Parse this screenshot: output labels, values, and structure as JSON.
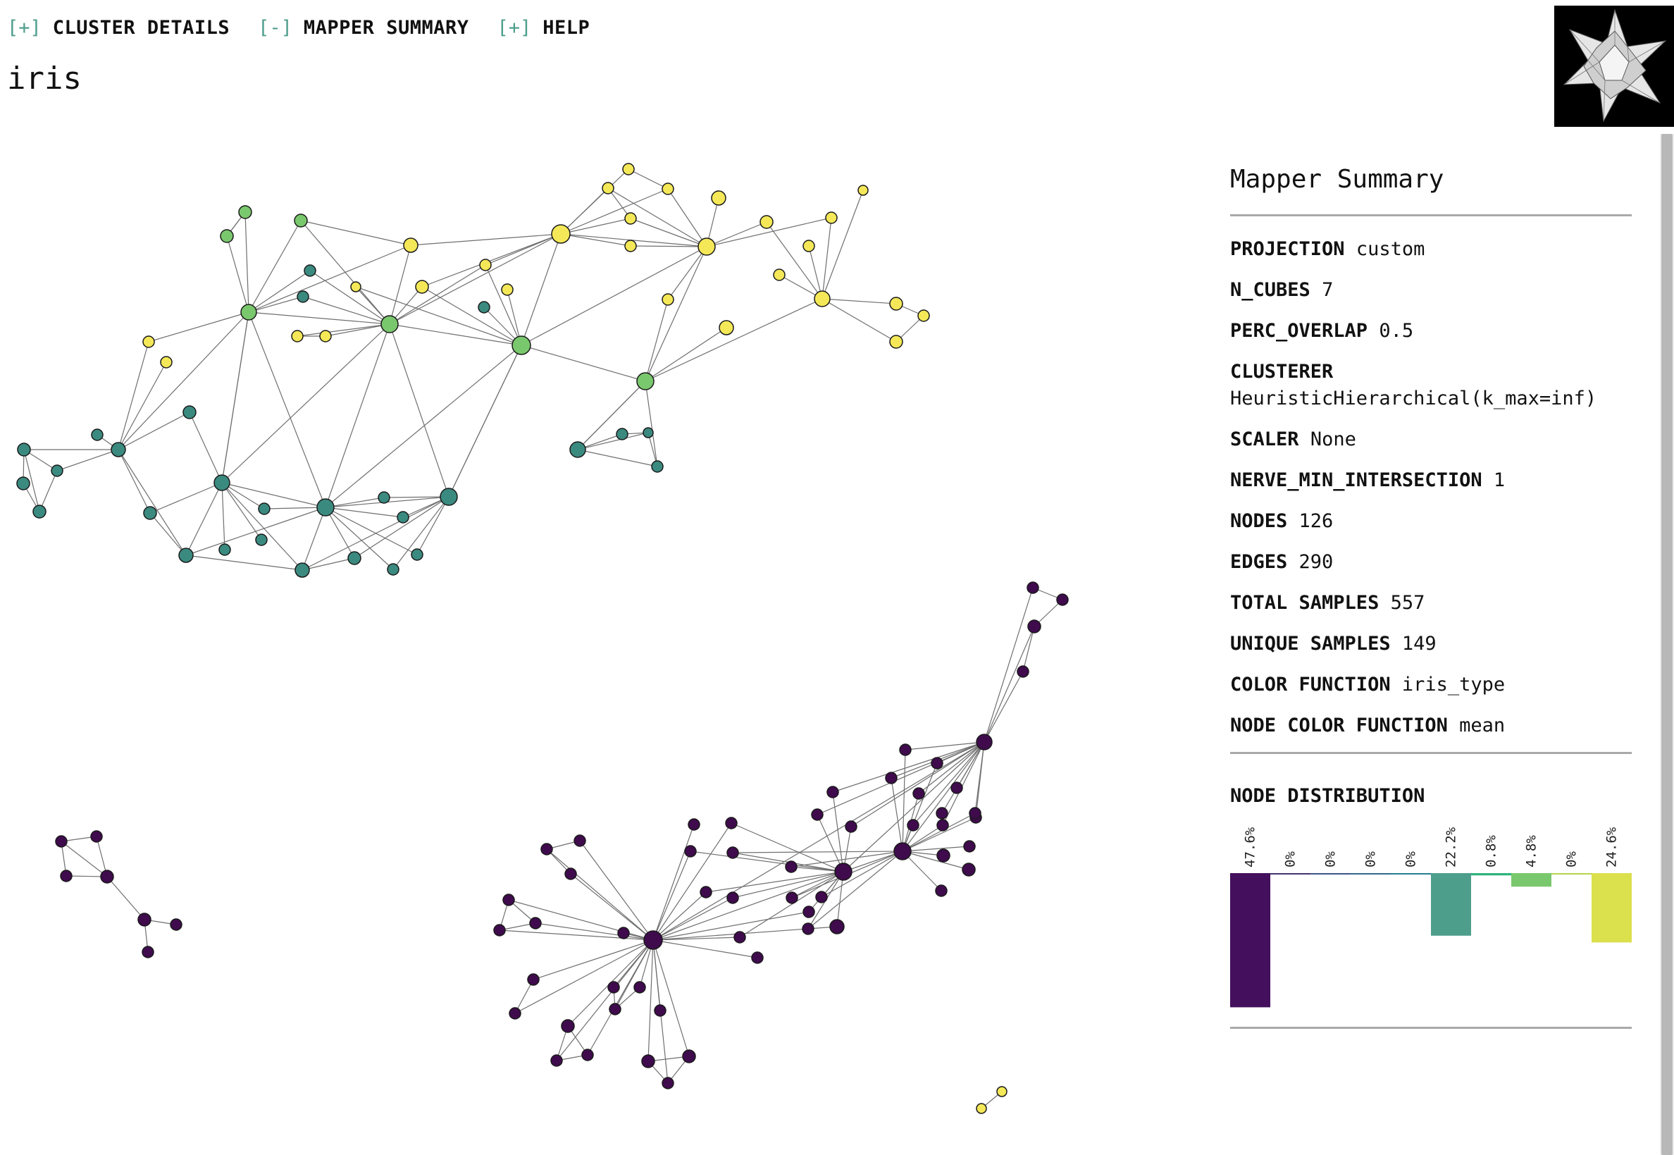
{
  "topbar": {
    "items": [
      {
        "toggle": "[+]",
        "label": "CLUSTER DETAILS"
      },
      {
        "toggle": "[-]",
        "label": "MAPPER SUMMARY"
      },
      {
        "toggle": "[+]",
        "label": "HELP"
      }
    ]
  },
  "title": "iris",
  "logo": {
    "icon": "stellated-polyhedron-logo-icon"
  },
  "summary": {
    "title": "Mapper Summary",
    "params": [
      {
        "key": "PROJECTION",
        "value": "custom"
      },
      {
        "key": "N_CUBES",
        "value": "7"
      },
      {
        "key": "PERC_OVERLAP",
        "value": "0.5"
      },
      {
        "key": "CLUSTERER",
        "value": "HeuristicHierarchical(k_max=inf)"
      },
      {
        "key": "SCALER",
        "value": "None"
      },
      {
        "key": "NERVE_MIN_INTERSECTION",
        "value": "1"
      },
      {
        "key": "NODES",
        "value": "126"
      },
      {
        "key": "EDGES",
        "value": "290"
      },
      {
        "key": "TOTAL SAMPLES",
        "value": "557"
      },
      {
        "key": "UNIQUE SAMPLES",
        "value": "149"
      },
      {
        "key": "COLOR FUNCTION",
        "value": "iris_type"
      },
      {
        "key": "NODE COLOR FUNCTION",
        "value": "mean"
      }
    ],
    "distribution_title": "NODE DISTRIBUTION"
  },
  "chart_data": {
    "type": "bar",
    "categories": [
      "47.6%",
      "0%",
      "0%",
      "0%",
      "0%",
      "22.2%",
      "0.8%",
      "4.8%",
      "0%",
      "24.6%"
    ],
    "values": [
      47.6,
      0,
      0,
      0,
      0,
      22.2,
      0.8,
      4.8,
      0,
      24.6
    ],
    "colors": [
      "#440f5c",
      "#45346f",
      "#3d5389",
      "#306a8e",
      "#277e8e",
      "#4e9e8c",
      "#2fb47c",
      "#7ac86d",
      "#b4d64a",
      "#dbe04d"
    ],
    "ylim": [
      0,
      50
    ]
  },
  "palette": {
    "purple": "#3f0b4d",
    "teal": "#3b8a80",
    "green": "#7ac86d",
    "yellow": "#f4e858"
  }
}
